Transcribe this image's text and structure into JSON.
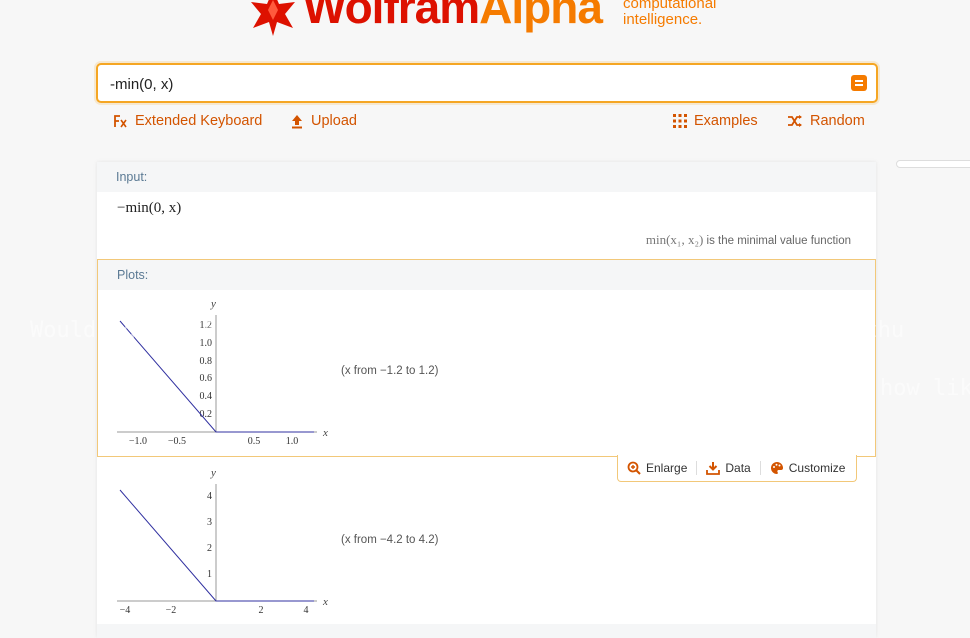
{
  "header": {
    "brand_main": "Wolfram",
    "brand_accent": "Alpha",
    "tagline_line1": "computational",
    "tagline_line2": "intelligence.",
    "colors": {
      "red": "#dd1100",
      "orange": "#f57b00"
    }
  },
  "search": {
    "value": "-min(0, x)",
    "go_icon": "equals-icon"
  },
  "toolbar": {
    "extended_keyboard": "Extended Keyboard",
    "upload": "Upload",
    "examples": "Examples",
    "random": "Random"
  },
  "pods": {
    "input": {
      "title": "Input:",
      "expression": "−min(0, x)",
      "note_func": "min(x₁, x₂)",
      "note_text": "is the minimal value function"
    },
    "plots": {
      "title": "Plots:",
      "plot1": {
        "y_label": "y",
        "x_label": "x",
        "y_ticks": [
          "1.2",
          "1.0",
          "0.8",
          "0.6",
          "0.4",
          "0.2"
        ],
        "x_ticks": [
          "−1.0",
          "−0.5",
          "0.5",
          "1.0"
        ],
        "range_text": "(x from −1.2 to 1.2)"
      },
      "plot2": {
        "y_label": "y",
        "x_label": "x",
        "y_ticks": [
          "4",
          "3",
          "2",
          "1"
        ],
        "x_ticks": [
          "−4",
          "−2",
          "2",
          "4"
        ],
        "range_text": "(x from −4.2 to 4.2)"
      },
      "actions": {
        "enlarge": "Enlarge",
        "data": "Data",
        "customize": "Customize"
      }
    }
  },
  "overlay_text": {
    "line1": "Would   again. But every time I see you in our rifts you give me thu",
    "line2": "how lik"
  }
}
